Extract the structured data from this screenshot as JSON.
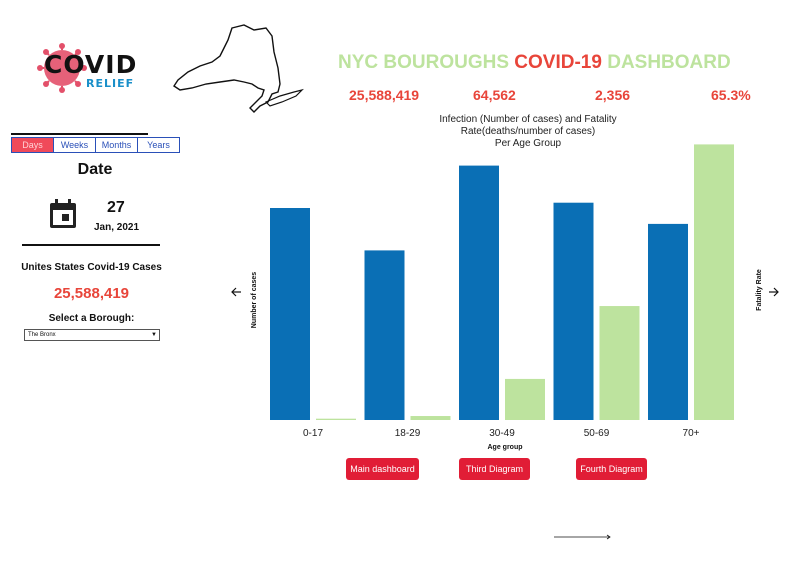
{
  "logo": {
    "word": "COVID",
    "sub": "RELIEF",
    "virus_color": "#e3506a",
    "relief_color": "#1a8fc9"
  },
  "header": {
    "title_part1": "NYC BOUROUGHS",
    "title_part2": "COVID-19",
    "title_part3": "DASHBOARD",
    "stats": [
      "25,588,419",
      "64,562",
      "2,356",
      "65.3%"
    ]
  },
  "sidebar": {
    "periods": [
      "Days",
      "Weeks",
      "Months",
      "Years"
    ],
    "active_period": "Days",
    "date_label": "Date",
    "day": "27",
    "month_year": "Jan, 2021",
    "us_label": "Unites States Covid-19 Cases",
    "us_value": "25,588,419",
    "borough_label": "Select a Borough:",
    "borough_selected": "The Bronx"
  },
  "chart_title": {
    "line1": "Infection (Number of cases) and Fatality",
    "line2": "Rate(deaths/number of cases)",
    "line3": "Per Age Group"
  },
  "chart_data": {
    "type": "bar",
    "title": "Infection (Number of cases) and Fatality Rate(deaths/number of cases) Per Age Group",
    "xlabel": "Age group",
    "ylabel": "Number of cases",
    "y2label": "Fatality Rate",
    "categories": [
      "0-17",
      "18-29",
      "30-49",
      "50-69",
      "70+"
    ],
    "series": [
      {
        "color": "#0a6fb5",
        "values": [
          80,
          64,
          96,
          82,
          74
        ]
      },
      {
        "color": "#bde39e",
        "values": [
          0.5,
          1.5,
          15.5,
          43,
          104
        ]
      }
    ],
    "ylim": [
      0,
      100
    ],
    "grid": false,
    "legend": "none"
  },
  "nav_buttons": [
    "Main dashboard",
    "Third Diagram",
    "Fourth Diagram"
  ]
}
